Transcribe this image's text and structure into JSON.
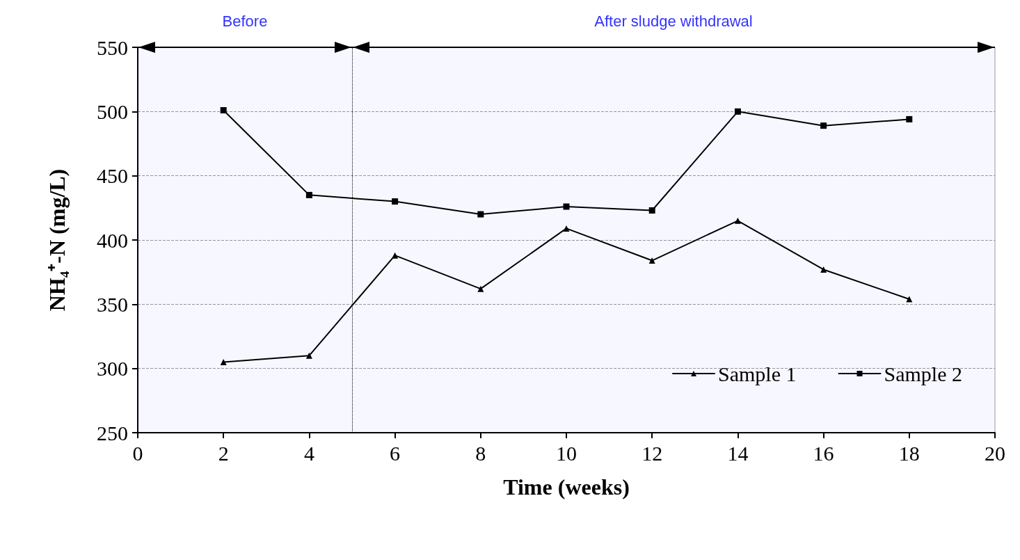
{
  "chart_data": {
    "type": "line",
    "xlabel": "Time (weeks)",
    "ylabel": "NH₄⁺-N (mg/L)",
    "x": [
      2,
      4,
      6,
      8,
      10,
      12,
      14,
      16,
      18
    ],
    "series": [
      {
        "name": "Sample 1",
        "color": "#000000",
        "marker": "triangle",
        "values": [
          305,
          310,
          388,
          362,
          409,
          384,
          415,
          377,
          354
        ]
      },
      {
        "name": "Sample 2",
        "color": "#000000",
        "marker": "square",
        "values": [
          501,
          435,
          430,
          420,
          426,
          423,
          500,
          489,
          494
        ]
      }
    ],
    "xlim": [
      0,
      20
    ],
    "xticks": [
      0,
      2,
      4,
      6,
      8,
      10,
      12,
      14,
      16,
      18,
      20
    ],
    "ylim": [
      250,
      550
    ],
    "yticks": [
      250,
      300,
      350,
      400,
      450,
      500,
      550
    ],
    "grid": "y",
    "legend": "bottom right",
    "line_style": "solid",
    "ref_lines": [
      {
        "axis": "x",
        "value": 5,
        "line_style": "dotted",
        "color": "#000000"
      }
    ],
    "bands": [
      {
        "axis": "x",
        "from": 0,
        "to": 5,
        "label": "Before",
        "color": "#3333ff"
      },
      {
        "axis": "x",
        "from": 5,
        "to": 20,
        "label": "After sludge withdrawal",
        "color": "#3333ff"
      }
    ]
  }
}
